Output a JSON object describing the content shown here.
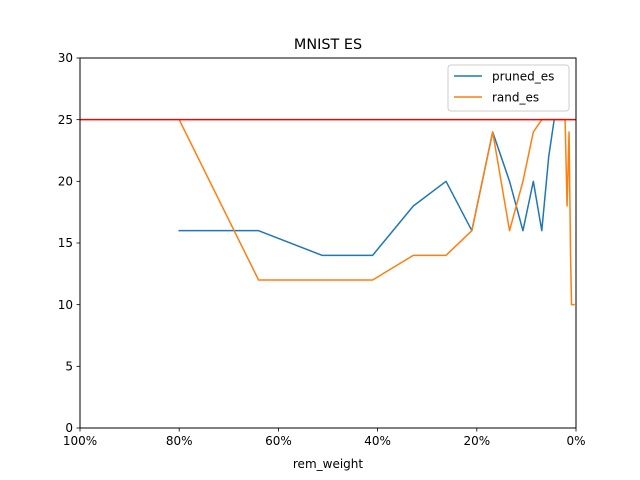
{
  "chart_data": {
    "type": "line",
    "title": "MNIST ES",
    "xlabel": "rem_weight",
    "ylabel": "",
    "xlim": [
      100,
      0
    ],
    "ylim": [
      0,
      30
    ],
    "x_ticks": [
      100,
      80,
      60,
      40,
      20,
      0
    ],
    "x_tick_labels": [
      "100%",
      "80%",
      "60%",
      "40%",
      "20%",
      "0%"
    ],
    "y_ticks": [
      0,
      5,
      10,
      15,
      20,
      25,
      30
    ],
    "y_tick_labels": [
      "0",
      "5",
      "10",
      "15",
      "20",
      "25",
      "30"
    ],
    "grid": false,
    "legend_position": "top-right",
    "series": [
      {
        "name": "pruned_es",
        "color": "#1f77b4",
        "x": [
          80,
          64,
          51.2,
          41,
          32.8,
          26.2,
          21,
          16.8,
          13.4,
          10.7,
          8.6,
          6.9,
          5.5,
          4.4
        ],
        "y": [
          16,
          16,
          14,
          14,
          18,
          20,
          16,
          24,
          20,
          16,
          20,
          16,
          22,
          25
        ]
      },
      {
        "name": "rand_es",
        "color": "#ff7f0e",
        "x": [
          80,
          64,
          51.2,
          41,
          32.8,
          26.2,
          21,
          16.8,
          13.4,
          10.7,
          8.6,
          6.9,
          5.5,
          4.4,
          3.5,
          2.2,
          1.8,
          1.4,
          1.1,
          0.9,
          0.7,
          0.4
        ],
        "y": [
          25,
          12,
          12,
          12,
          14,
          14,
          16,
          24,
          16,
          20,
          24,
          25,
          25,
          25,
          25,
          25,
          18,
          24,
          14,
          10,
          10,
          10
        ]
      }
    ],
    "reference_line": {
      "y": 25,
      "color": "#ff0000"
    }
  }
}
